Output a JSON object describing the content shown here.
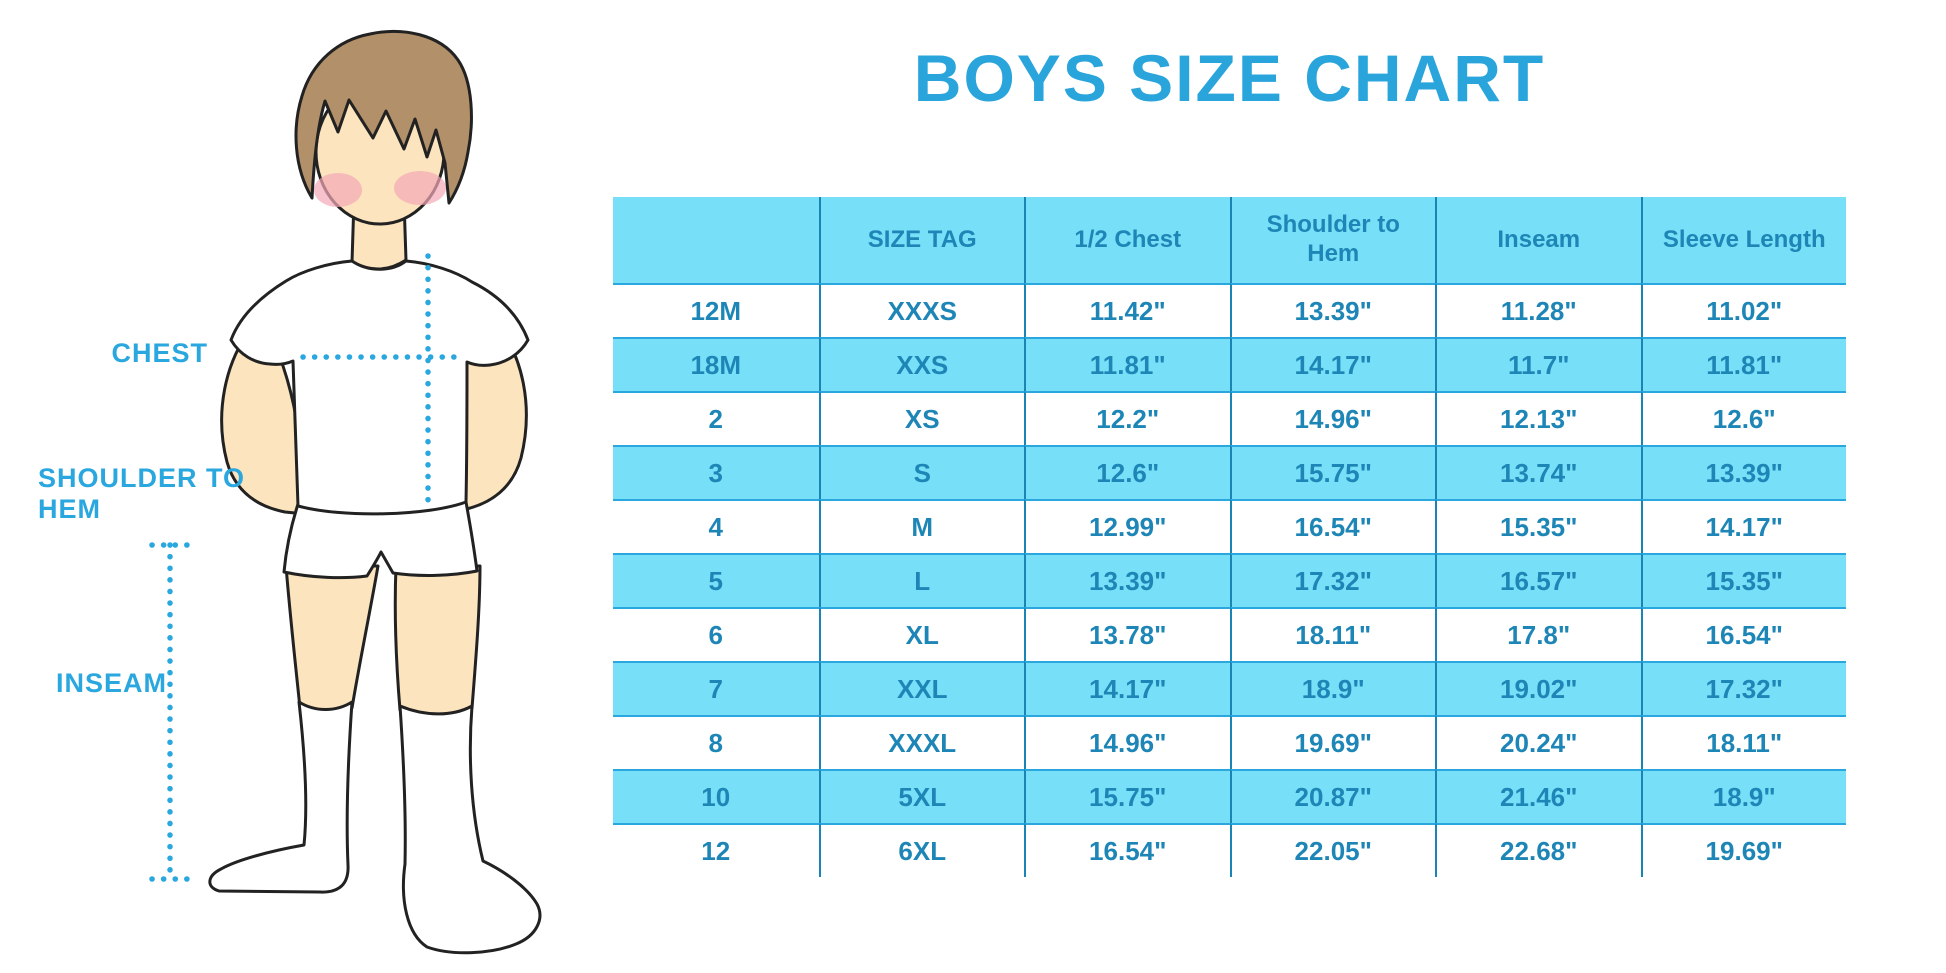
{
  "title": "BOYS SIZE CHART",
  "figure": {
    "labels": {
      "chest": "CHEST",
      "shoulder_to_hem": "SHOULDER TO HEM",
      "inseam": "INSEAM"
    }
  },
  "colors": {
    "accent": "#29A7DE",
    "title": "#2AA5DC",
    "table_fill": "#77DFF7",
    "table_text": "#1E86B6",
    "column_divider": "#1A85B5",
    "row_divider": "#29A7DE",
    "skin": "#FBE4BE",
    "hair": "#B2906A",
    "blush": "#F3A8B6"
  },
  "chart_data": {
    "type": "table",
    "title": "BOYS SIZE CHART",
    "units": "inches",
    "columns": [
      "",
      "SIZE TAG",
      "1/2 Chest",
      "Shoulder to Hem",
      "Inseam",
      "Sleeve Length"
    ],
    "rows": [
      [
        "12M",
        "XXXS",
        "11.42\"",
        "13.39\"",
        "11.28\"",
        "11.02\""
      ],
      [
        "18M",
        "XXS",
        "11.81\"",
        "14.17\"",
        "11.7\"",
        "11.81\""
      ],
      [
        "2",
        "XS",
        "12.2\"",
        "14.96\"",
        "12.13\"",
        "12.6\""
      ],
      [
        "3",
        "S",
        "12.6\"",
        "15.75\"",
        "13.74\"",
        "13.39\""
      ],
      [
        "4",
        "M",
        "12.99\"",
        "16.54\"",
        "15.35\"",
        "14.17\""
      ],
      [
        "5",
        "L",
        "13.39\"",
        "17.32\"",
        "16.57\"",
        "15.35\""
      ],
      [
        "6",
        "XL",
        "13.78\"",
        "18.11\"",
        "17.8\"",
        "16.54\""
      ],
      [
        "7",
        "XXL",
        "14.17\"",
        "18.9\"",
        "19.02\"",
        "17.32\""
      ],
      [
        "8",
        "XXXL",
        "14.96\"",
        "19.69\"",
        "20.24\"",
        "18.11\""
      ],
      [
        "10",
        "5XL",
        "15.75\"",
        "20.87\"",
        "21.46\"",
        "18.9\""
      ],
      [
        "12",
        "6XL",
        "16.54\"",
        "22.05\"",
        "22.68\"",
        "19.69\""
      ]
    ]
  }
}
